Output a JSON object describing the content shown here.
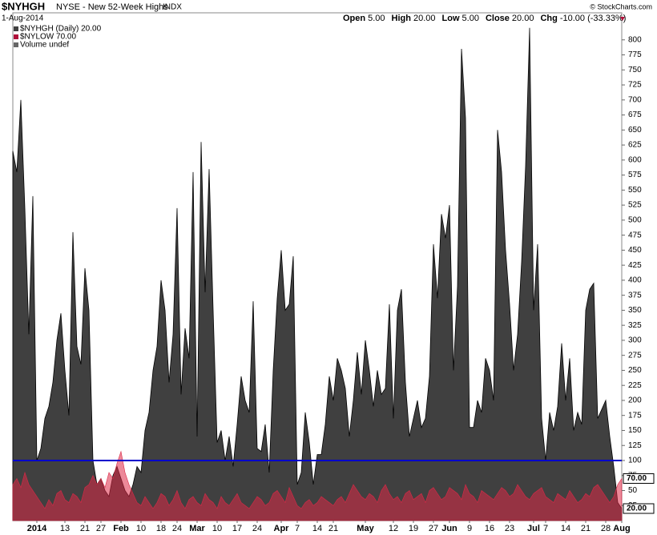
{
  "chart_data": {
    "type": "area",
    "symbol": "$NYHGH",
    "name": "NYSE - New 52-Week Highs",
    "exchange": "INDX",
    "date": "1-Aug-2014",
    "ohlc": [
      {
        "label": "Open",
        "value": "5.00"
      },
      {
        "label": "High",
        "value": "20.00"
      },
      {
        "label": "Low",
        "value": "5.00"
      },
      {
        "label": "Close",
        "value": "20.00"
      },
      {
        "label": "Chg",
        "value": "-10.00 (-33.33%)"
      }
    ],
    "credit": "© StockCharts.com",
    "legend": [
      "$NYHGH (Daily) 20.00",
      "$NYLOW 70.00",
      "Volume undef"
    ],
    "categories": [
      null,
      null,
      null,
      null,
      null,
      null,
      "2014",
      null,
      null,
      null,
      null,
      null,
      null,
      "13",
      null,
      null,
      null,
      null,
      "21",
      null,
      null,
      null,
      "27",
      null,
      null,
      null,
      null,
      "Feb",
      null,
      null,
      null,
      null,
      "10",
      null,
      null,
      null,
      null,
      "18",
      null,
      null,
      null,
      "24",
      null,
      null,
      null,
      null,
      "Mar",
      null,
      null,
      null,
      null,
      "10",
      null,
      null,
      null,
      null,
      "17",
      null,
      null,
      null,
      null,
      "24",
      null,
      null,
      null,
      null,
      null,
      "Apr",
      null,
      null,
      null,
      "7",
      null,
      null,
      null,
      null,
      "14",
      null,
      null,
      null,
      "21",
      null,
      null,
      null,
      null,
      null,
      null,
      null,
      "May",
      null,
      null,
      null,
      null,
      null,
      null,
      "12",
      null,
      null,
      null,
      null,
      "19",
      null,
      null,
      null,
      null,
      "27",
      null,
      null,
      null,
      "Jun",
      null,
      null,
      null,
      null,
      "9",
      null,
      null,
      null,
      null,
      "16",
      null,
      null,
      null,
      null,
      "23",
      null,
      null,
      null,
      null,
      null,
      "Jul",
      null,
      null,
      "7",
      null,
      null,
      null,
      null,
      "14",
      null,
      null,
      null,
      null,
      "21",
      null,
      null,
      null,
      null,
      "28",
      null,
      null,
      null,
      "Aug"
    ],
    "series": [
      {
        "name": "$NYHGH",
        "color": "#404040",
        "last_label": "20.00",
        "values": [
          615,
          580,
          700,
          520,
          310,
          540,
          100,
          120,
          170,
          190,
          230,
          300,
          345,
          250,
          175,
          480,
          290,
          260,
          420,
          350,
          100,
          60,
          70,
          50,
          40,
          75,
          90,
          70,
          50,
          40,
          60,
          90,
          80,
          150,
          180,
          250,
          290,
          400,
          350,
          230,
          310,
          520,
          210,
          320,
          270,
          580,
          140,
          630,
          380,
          585,
          350,
          130,
          150,
          100,
          140,
          90,
          160,
          240,
          200,
          180,
          365,
          120,
          115,
          160,
          80,
          250,
          370,
          450,
          350,
          360,
          440,
          60,
          80,
          180,
          130,
          60,
          110,
          110,
          160,
          240,
          200,
          270,
          250,
          220,
          140,
          200,
          280,
          210,
          300,
          250,
          190,
          250,
          210,
          220,
          360,
          170,
          350,
          385,
          230,
          140,
          170,
          200,
          155,
          170,
          240,
          460,
          370,
          510,
          470,
          525,
          250,
          390,
          785,
          670,
          155,
          155,
          200,
          180,
          270,
          250,
          200,
          650,
          580,
          450,
          360,
          250,
          310,
          430,
          590,
          820,
          350,
          460,
          170,
          100,
          180,
          150,
          190,
          295,
          200,
          270,
          150,
          180,
          160,
          350,
          385,
          395,
          170,
          185,
          200,
          140,
          90,
          30,
          20
        ]
      },
      {
        "name": "$NYLOW",
        "color": "#dc2846",
        "last_label": "70.00",
        "values": [
          60,
          70,
          55,
          80,
          60,
          50,
          40,
          30,
          20,
          35,
          25,
          45,
          50,
          35,
          30,
          45,
          40,
          30,
          55,
          60,
          75,
          60,
          70,
          55,
          80,
          70,
          95,
          115,
          80,
          60,
          45,
          30,
          25,
          40,
          30,
          20,
          30,
          45,
          40,
          25,
          35,
          50,
          30,
          20,
          35,
          40,
          30,
          25,
          45,
          35,
          30,
          20,
          40,
          30,
          25,
          35,
          45,
          30,
          25,
          20,
          30,
          40,
          35,
          25,
          30,
          45,
          50,
          40,
          30,
          55,
          40,
          25,
          20,
          30,
          35,
          25,
          30,
          40,
          35,
          30,
          25,
          35,
          40,
          30,
          45,
          60,
          50,
          40,
          35,
          45,
          40,
          30,
          50,
          60,
          45,
          35,
          40,
          30,
          45,
          50,
          35,
          40,
          45,
          30,
          50,
          55,
          45,
          35,
          40,
          55,
          50,
          45,
          35,
          60,
          45,
          40,
          30,
          50,
          45,
          40,
          35,
          45,
          55,
          50,
          40,
          45,
          60,
          50,
          40,
          35,
          45,
          50,
          55,
          40,
          35,
          30,
          45,
          40,
          35,
          50,
          40,
          30,
          35,
          45,
          40,
          55,
          60,
          50,
          40,
          30,
          40,
          60,
          70
        ]
      }
    ],
    "hline": {
      "value": 100,
      "color": "#0000cc"
    },
    "ylim": [
      0,
      845
    ],
    "yticks": [
      25,
      50,
      75,
      100,
      125,
      150,
      175,
      200,
      225,
      250,
      275,
      300,
      325,
      350,
      375,
      400,
      425,
      450,
      475,
      500,
      525,
      550,
      575,
      600,
      625,
      650,
      675,
      700,
      725,
      750,
      775,
      800
    ]
  }
}
